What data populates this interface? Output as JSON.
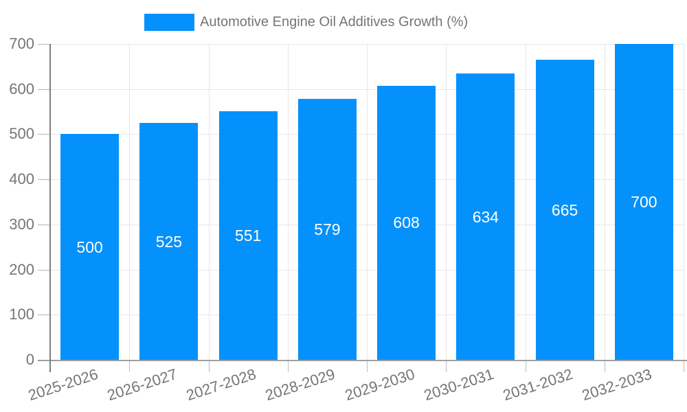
{
  "legend": {
    "label": "Automotive Engine Oil Additives Growth (%)"
  },
  "chart_data": {
    "type": "bar",
    "title": "Automotive Engine Oil Additives Growth (%)",
    "categories": [
      "2025-2026",
      "2026-2027",
      "2027-2028",
      "2028-2029",
      "2029-2030",
      "2030-2031",
      "2031-2032",
      "2032-2033"
    ],
    "values": [
      500,
      525,
      551,
      579,
      608,
      634,
      665,
      700
    ],
    "xlabel": "",
    "ylabel": "",
    "ylim": [
      0,
      700
    ],
    "yticks": [
      0,
      100,
      200,
      300,
      400,
      500,
      600,
      700
    ],
    "grid": true,
    "legend_position": "top",
    "colors": {
      "bar": "#0591fb",
      "bar_label": "#ffffff",
      "axis_text": "#757575",
      "gridline": "#e6e6e6",
      "x_axis_line": "#9e9e9e",
      "y_axis_line": "#7d7d7d",
      "tick_minor": "#bdbdbd",
      "tick_left": "#b3b3b3"
    }
  }
}
